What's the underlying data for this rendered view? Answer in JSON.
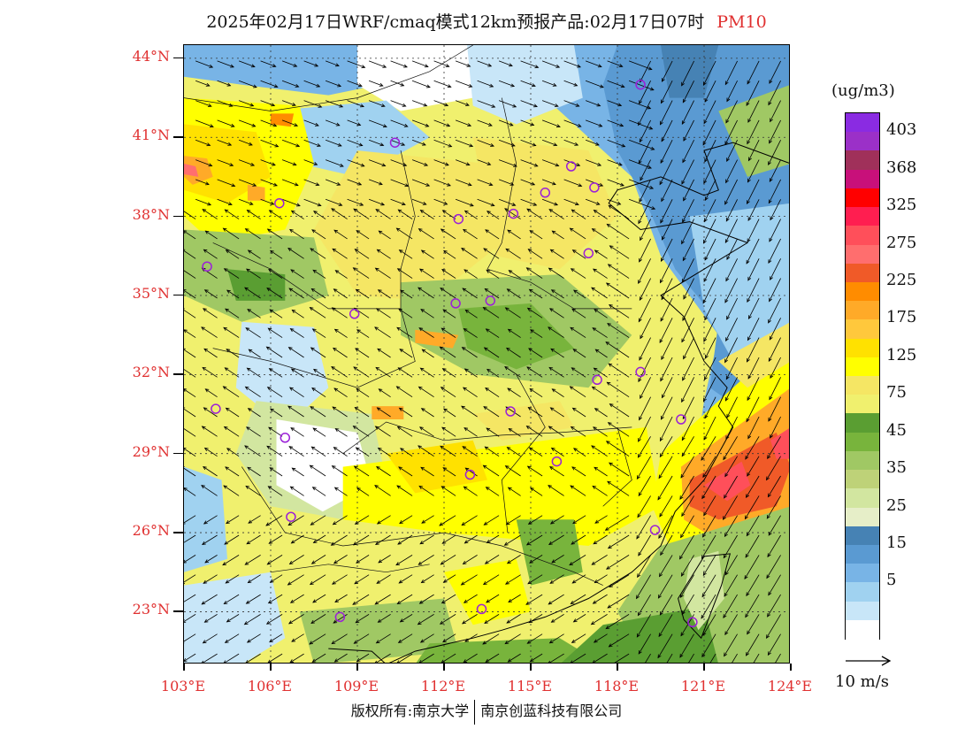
{
  "title": {
    "text": "2025年02月17日WRF/cmaq模式12km预报产品:02月17日07时",
    "species": "PM10"
  },
  "map": {
    "lat_labels": [
      "44°N",
      "41°N",
      "38°N",
      "35°N",
      "32°N",
      "29°N",
      "26°N",
      "23°N"
    ],
    "lon_labels": [
      "103°E",
      "106°E",
      "109°E",
      "112°E",
      "115°E",
      "118°E",
      "121°E",
      "124°E"
    ],
    "lat_range": [
      21,
      44.5
    ],
    "lon_range": [
      103,
      124
    ],
    "regions": [
      {
        "level": "45-75",
        "lon": 115,
        "lat": 34
      },
      {
        "level": "75-125",
        "lon": 112,
        "lat": 27
      },
      {
        "level": "175-225",
        "lon": 121.2,
        "lat": 28.0
      },
      {
        "level": "5-15",
        "lon": 120.5,
        "lat": 35.5
      }
    ]
  },
  "legend": {
    "unit": "(ug/m3)",
    "colors": [
      "#8a2be2",
      "#9b30c8",
      "#a0305a",
      "#c8107a",
      "#ff0000",
      "#ff1e50",
      "#ff4f5a",
      "#ff6e6e",
      "#f05a28",
      "#ff8c00",
      "#ffaa28",
      "#ffc83c",
      "#ffe100",
      "#ffff00",
      "#f5e664",
      "#f0f06e",
      "#5a9e32",
      "#78b43c",
      "#a0c864",
      "#bed278",
      "#d2e6a0",
      "#e6eec8",
      "#4682b4",
      "#5a9ad2",
      "#78b4e6",
      "#a0d2f0",
      "#c8e6f8",
      "#ffffff"
    ],
    "labels": [
      "403",
      "368",
      "325",
      "275",
      "225",
      "175",
      "125",
      "75",
      "45",
      "35",
      "25",
      "15",
      "5"
    ]
  },
  "wind": {
    "reference": "10 m/s"
  },
  "footer": {
    "left": "版权所有:南京大学",
    "right": "南京创蓝科技有限公司"
  }
}
